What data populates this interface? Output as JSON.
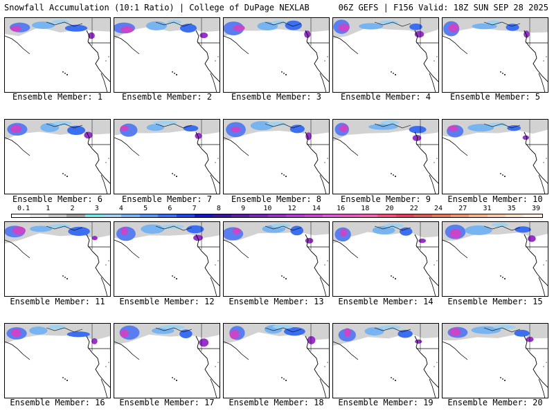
{
  "header": {
    "left": "Snowfall Accumulation (10:1 Ratio) | College of DuPage NEXLAB",
    "right": "06Z GEFS | F156 Valid: 18Z SUN SEP 28 2025"
  },
  "members": [
    "Ensemble Member: 1",
    "Ensemble Member: 2",
    "Ensemble Member: 3",
    "Ensemble Member: 4",
    "Ensemble Member: 5",
    "Ensemble Member: 6",
    "Ensemble Member: 7",
    "Ensemble Member: 8",
    "Ensemble Member: 9",
    "Ensemble Member: 10",
    "Ensemble Member: 11",
    "Ensemble Member: 12",
    "Ensemble Member: 13",
    "Ensemble Member: 14",
    "Ensemble Member: 15",
    "Ensemble Member: 16",
    "Ensemble Member: 17",
    "Ensemble Member: 18",
    "Ensemble Member: 19",
    "Ensemble Member: 20"
  ],
  "colorbar": {
    "labels": [
      "0.1",
      "1",
      "2",
      "3",
      "4",
      "5",
      "6",
      "7",
      "8",
      "9",
      "10",
      "12",
      "14",
      "16",
      "18",
      "20",
      "22",
      "24",
      "27",
      "31",
      "35",
      "39"
    ],
    "colors": [
      "#ffffff",
      "#e6e6e6",
      "#c8c8c8",
      "#a0a0a0",
      "#7ae6e6",
      "#a0d2f0",
      "#78b4f0",
      "#5a96f0",
      "#3c6ef0",
      "#1e46e6",
      "#1414c8",
      "#3c14a0",
      "#5a1ea0",
      "#7828b4",
      "#9632c8",
      "#b43cd2",
      "#c846d2",
      "#dc5ad2",
      "#e65abe",
      "#f064b4",
      "#f0507d",
      "#e63c64",
      "#dc5a5a",
      "#e67860",
      "#f0966e",
      "#f5b48c",
      "#f8cca8",
      "#fbe0c8",
      "#fdf0e0"
    ]
  }
}
